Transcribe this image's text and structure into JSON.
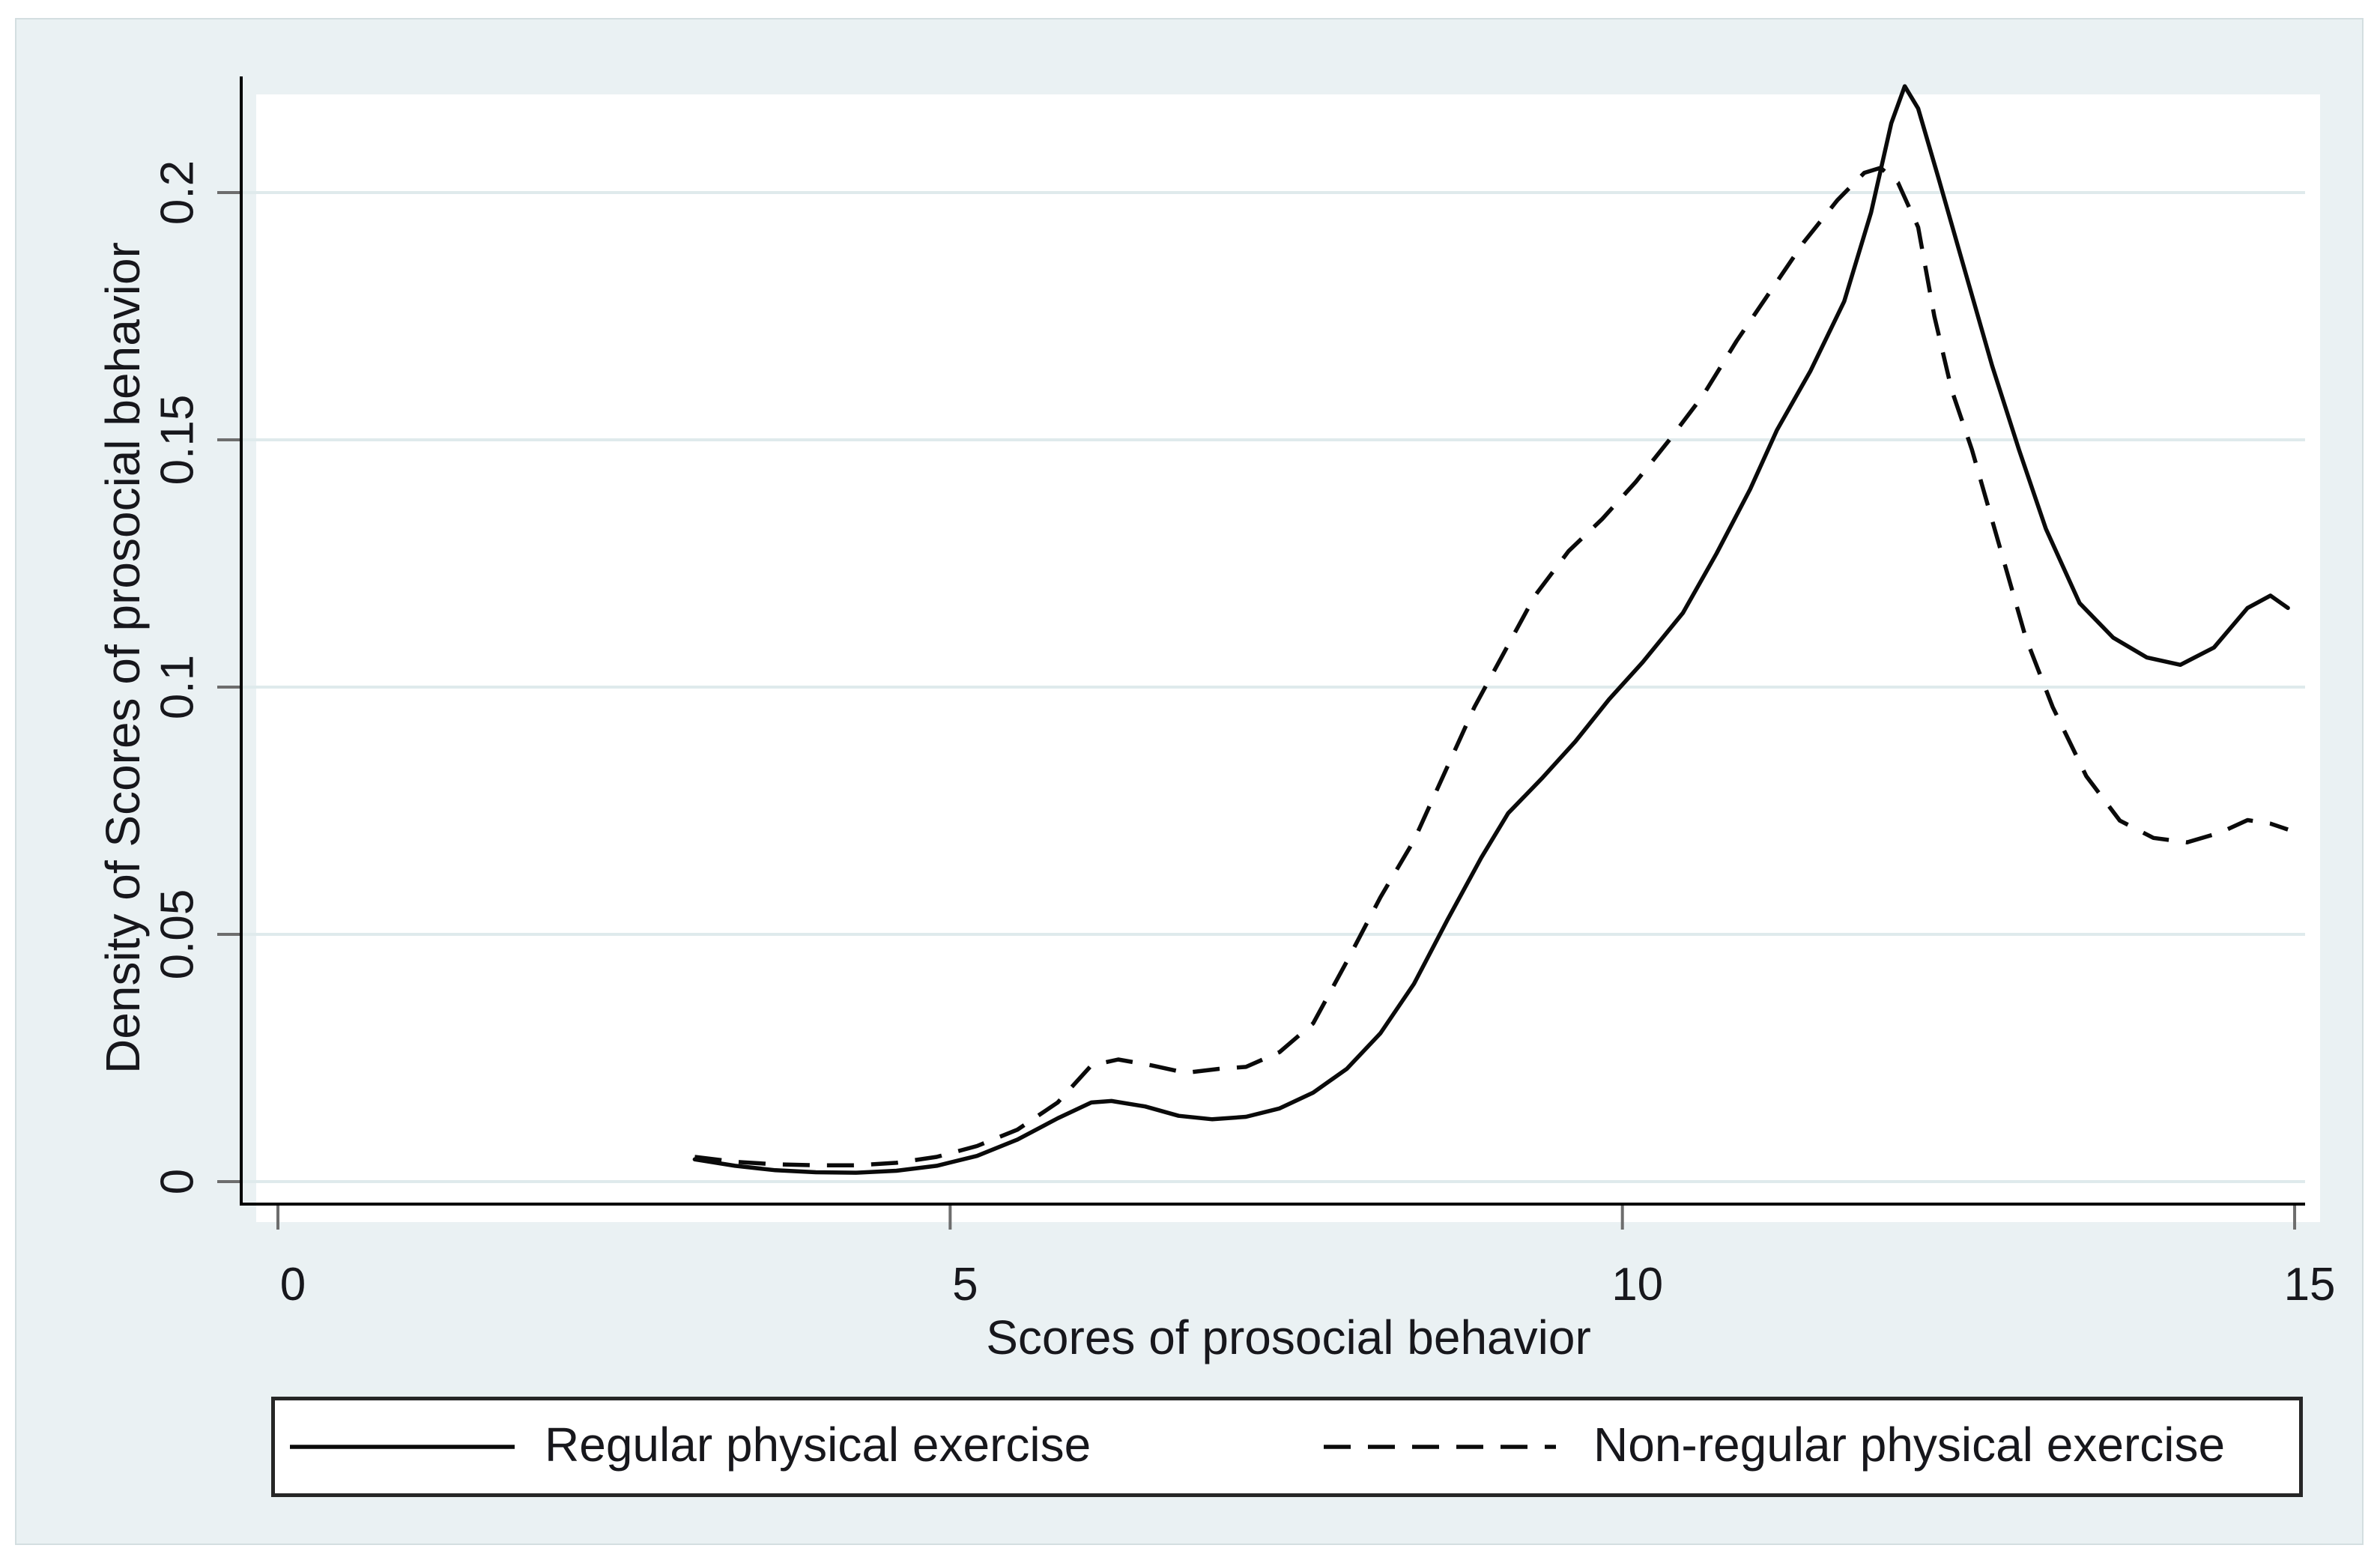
{
  "figure": {
    "page_background": "#ffffff",
    "canvas_color": "#eaf1f3",
    "plot_background": "#ffffff",
    "grid_color": "#dfeaec",
    "axis_color": "#000000",
    "tick_color": "#6d6d6d",
    "text_color": "#17171c",
    "line_color": "#0a0a0a"
  },
  "chart_data": {
    "type": "line",
    "title": "",
    "xlabel": "Scores of prosocial behavior",
    "ylabel": "Density of Scores of prosocial behavior",
    "xlim": [
      0,
      15
    ],
    "ylim": [
      0,
      0.2235
    ],
    "grid": "horizontal",
    "legend_position": "bottom",
    "x_ticks": [
      {
        "value": 0,
        "label": "0"
      },
      {
        "value": 5,
        "label": "5"
      },
      {
        "value": 10,
        "label": "10"
      },
      {
        "value": 15,
        "label": "15"
      }
    ],
    "y_ticks": [
      {
        "value": 0,
        "label": "0"
      },
      {
        "value": 0.05,
        "label": "0.05"
      },
      {
        "value": 0.1,
        "label": "0.1"
      },
      {
        "value": 0.15,
        "label": "0.15"
      },
      {
        "value": 0.2,
        "label": "0.2"
      }
    ],
    "series": [
      {
        "name": "Regular physical exercise",
        "style": "solid",
        "points": [
          [
            3.1,
            0.0045
          ],
          [
            3.4,
            0.0032
          ],
          [
            3.7,
            0.0023
          ],
          [
            4.0,
            0.0019
          ],
          [
            4.3,
            0.0018
          ],
          [
            4.6,
            0.0022
          ],
          [
            4.9,
            0.0032
          ],
          [
            5.2,
            0.0052
          ],
          [
            5.5,
            0.0085
          ],
          [
            5.8,
            0.0128
          ],
          [
            6.05,
            0.016
          ],
          [
            6.2,
            0.0163
          ],
          [
            6.45,
            0.0152
          ],
          [
            6.7,
            0.0133
          ],
          [
            6.95,
            0.0126
          ],
          [
            7.2,
            0.0131
          ],
          [
            7.45,
            0.0148
          ],
          [
            7.7,
            0.018
          ],
          [
            7.95,
            0.0228
          ],
          [
            8.2,
            0.03
          ],
          [
            8.45,
            0.04
          ],
          [
            8.7,
            0.053
          ],
          [
            8.95,
            0.0655
          ],
          [
            9.15,
            0.0745
          ],
          [
            9.4,
            0.0815
          ],
          [
            9.65,
            0.089
          ],
          [
            9.9,
            0.0975
          ],
          [
            10.15,
            0.105
          ],
          [
            10.45,
            0.115
          ],
          [
            10.7,
            0.127
          ],
          [
            10.95,
            0.14
          ],
          [
            11.15,
            0.152
          ],
          [
            11.4,
            0.164
          ],
          [
            11.65,
            0.178
          ],
          [
            11.85,
            0.196
          ],
          [
            12.0,
            0.214
          ],
          [
            12.1,
            0.2215
          ],
          [
            12.2,
            0.217
          ],
          [
            12.35,
            0.203
          ],
          [
            12.55,
            0.184
          ],
          [
            12.75,
            0.165
          ],
          [
            12.95,
            0.148
          ],
          [
            13.15,
            0.132
          ],
          [
            13.4,
            0.117
          ],
          [
            13.65,
            0.11
          ],
          [
            13.9,
            0.106
          ],
          [
            14.15,
            0.1045
          ],
          [
            14.4,
            0.108
          ],
          [
            14.65,
            0.116
          ],
          [
            14.82,
            0.1185
          ],
          [
            14.95,
            0.116
          ]
        ]
      },
      {
        "name": "Non-regular physical exercise",
        "style": "dashed",
        "points": [
          [
            3.1,
            0.005
          ],
          [
            3.4,
            0.004
          ],
          [
            3.7,
            0.0035
          ],
          [
            4.0,
            0.0033
          ],
          [
            4.3,
            0.0033
          ],
          [
            4.6,
            0.0038
          ],
          [
            4.9,
            0.005
          ],
          [
            5.2,
            0.0072
          ],
          [
            5.5,
            0.0105
          ],
          [
            5.8,
            0.016
          ],
          [
            6.05,
            0.0235
          ],
          [
            6.25,
            0.0247
          ],
          [
            6.5,
            0.0235
          ],
          [
            6.75,
            0.022
          ],
          [
            7.0,
            0.0228
          ],
          [
            7.2,
            0.0232
          ],
          [
            7.45,
            0.0262
          ],
          [
            7.7,
            0.032
          ],
          [
            7.95,
            0.0445
          ],
          [
            8.2,
            0.0575
          ],
          [
            8.45,
            0.069
          ],
          [
            8.7,
            0.084
          ],
          [
            8.9,
            0.096
          ],
          [
            9.1,
            0.106
          ],
          [
            9.35,
            0.1185
          ],
          [
            9.6,
            0.1275
          ],
          [
            9.85,
            0.134
          ],
          [
            10.1,
            0.1415
          ],
          [
            10.35,
            0.15
          ],
          [
            10.6,
            0.159
          ],
          [
            10.85,
            0.17
          ],
          [
            11.1,
            0.18
          ],
          [
            11.35,
            0.19
          ],
          [
            11.6,
            0.1985
          ],
          [
            11.8,
            0.204
          ],
          [
            11.92,
            0.205
          ],
          [
            12.05,
            0.202
          ],
          [
            12.2,
            0.193
          ],
          [
            12.32,
            0.175
          ],
          [
            12.45,
            0.16
          ],
          [
            12.6,
            0.148
          ],
          [
            12.8,
            0.129
          ],
          [
            13.0,
            0.11
          ],
          [
            13.2,
            0.096
          ],
          [
            13.45,
            0.082
          ],
          [
            13.7,
            0.073
          ],
          [
            13.95,
            0.0695
          ],
          [
            14.2,
            0.0686
          ],
          [
            14.45,
            0.0706
          ],
          [
            14.65,
            0.0731
          ],
          [
            14.82,
            0.0724
          ],
          [
            14.95,
            0.0712
          ]
        ]
      }
    ]
  },
  "legend": {
    "items": [
      {
        "label": "Regular physical exercise",
        "line": "solid"
      },
      {
        "label": "Non-regular physical exercise",
        "line": "dashed"
      }
    ]
  }
}
